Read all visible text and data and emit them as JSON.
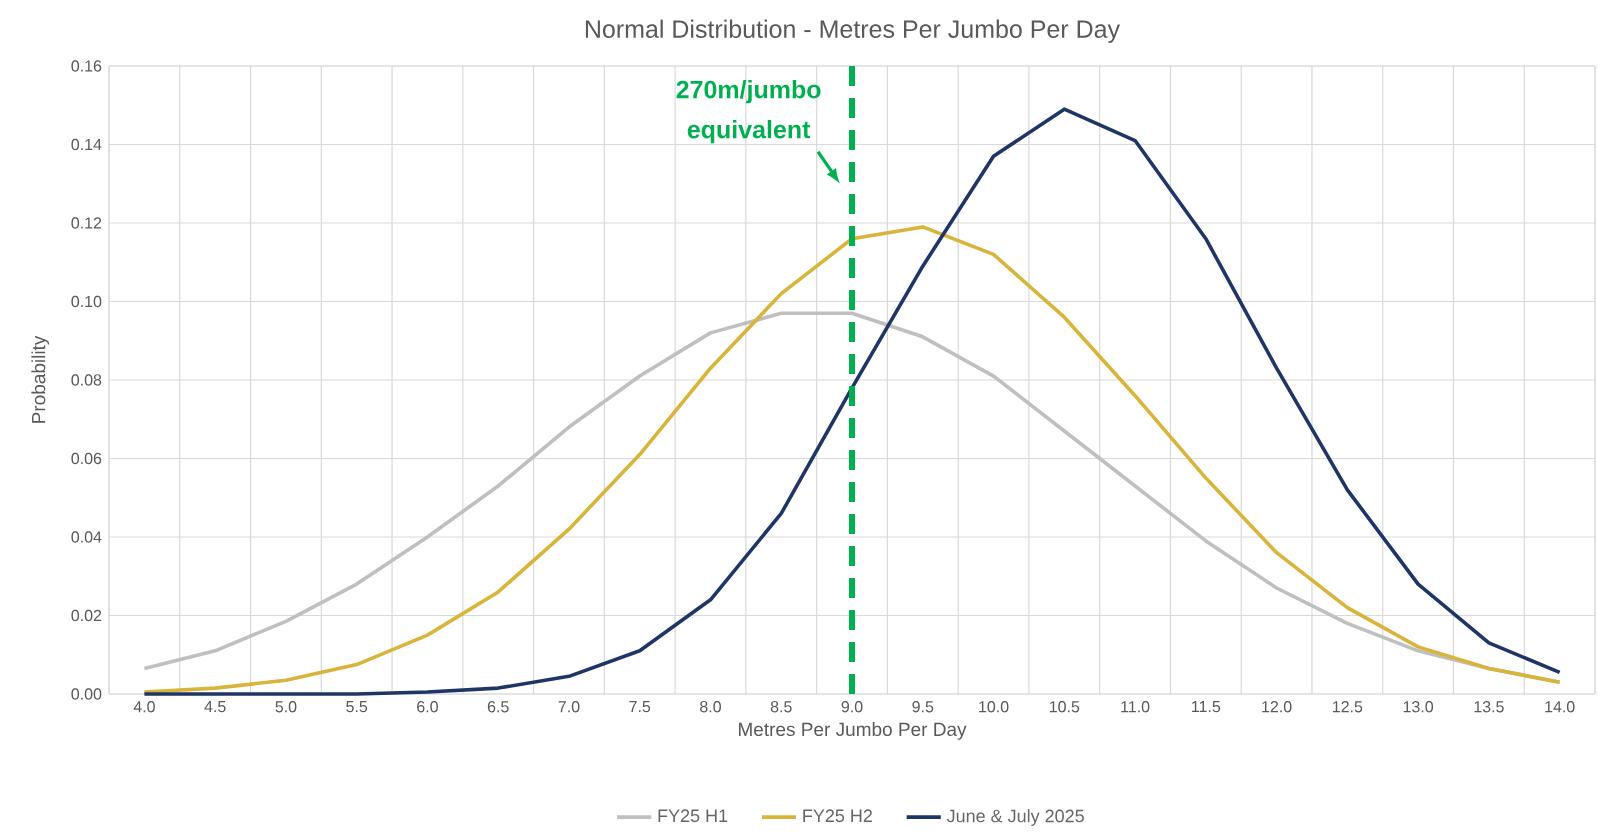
{
  "chart_data": {
    "type": "line",
    "title": "Normal Distribution - Metres Per Jumbo Per Day",
    "xlabel": "Metres Per Jumbo Per Day",
    "ylabel": "Probability",
    "x": [
      4.0,
      4.5,
      5.0,
      5.5,
      6.0,
      6.5,
      7.0,
      7.5,
      8.0,
      8.5,
      9.0,
      9.5,
      10.0,
      10.5,
      11.0,
      11.5,
      12.0,
      12.5,
      13.0,
      13.5,
      14.0
    ],
    "xlim": [
      3.75,
      14.25
    ],
    "xticks": [
      {
        "value": 4.0,
        "label": "4.0"
      },
      {
        "value": 4.5,
        "label": "4.5"
      },
      {
        "value": 5.0,
        "label": "5.0"
      },
      {
        "value": 5.5,
        "label": "5.5"
      },
      {
        "value": 6.0,
        "label": "6.0"
      },
      {
        "value": 6.5,
        "label": "6.5"
      },
      {
        "value": 7.0,
        "label": "7.0"
      },
      {
        "value": 7.5,
        "label": "7.5"
      },
      {
        "value": 8.0,
        "label": "8.0"
      },
      {
        "value": 8.5,
        "label": "8.5"
      },
      {
        "value": 9.0,
        "label": "9.0"
      },
      {
        "value": 9.5,
        "label": "9.5"
      },
      {
        "value": 10.0,
        "label": "10.0"
      },
      {
        "value": 10.5,
        "label": "10.5"
      },
      {
        "value": 11.0,
        "label": "11.0"
      },
      {
        "value": 11.5,
        "label": "11.5"
      },
      {
        "value": 12.0,
        "label": "12.0"
      },
      {
        "value": 12.5,
        "label": "12.5"
      },
      {
        "value": 13.0,
        "label": "13.0"
      },
      {
        "value": 13.5,
        "label": "13.5"
      },
      {
        "value": 14.0,
        "label": "14.0"
      }
    ],
    "ylim": [
      0,
      0.16
    ],
    "yticks": [
      {
        "value": 0,
        "label": "0.00"
      },
      {
        "value": 0.02,
        "label": "0.02"
      },
      {
        "value": 0.04,
        "label": "0.04"
      },
      {
        "value": 0.06,
        "label": "0.06"
      },
      {
        "value": 0.08,
        "label": "0.08"
      },
      {
        "value": 0.1,
        "label": "0.10"
      },
      {
        "value": 0.12,
        "label": "0.12"
      },
      {
        "value": 0.14,
        "label": "0.14"
      },
      {
        "value": 0.16,
        "label": "0.16"
      }
    ],
    "series": [
      {
        "name": "FY25 H1",
        "color": "#bfbfbf",
        "values": [
          0.0065,
          0.011,
          0.0185,
          0.028,
          0.04,
          0.053,
          0.068,
          0.081,
          0.092,
          0.097,
          0.097,
          0.091,
          0.081,
          0.067,
          0.053,
          0.039,
          0.027,
          0.018,
          0.011,
          0.0065,
          0.003
        ]
      },
      {
        "name": "FY25 H2",
        "color": "#d9b43a",
        "values": [
          0.0005,
          0.0015,
          0.0035,
          0.0075,
          0.015,
          0.026,
          0.042,
          0.061,
          0.083,
          0.102,
          0.116,
          0.119,
          0.112,
          0.096,
          0.076,
          0.055,
          0.036,
          0.022,
          0.012,
          0.0065,
          0.003
        ]
      },
      {
        "name": "June & July 2025",
        "color": "#1f3566",
        "values": [
          0,
          0,
          0,
          0,
          0.0005,
          0.0015,
          0.0045,
          0.011,
          0.024,
          0.046,
          0.078,
          0.109,
          0.137,
          0.149,
          0.141,
          0.116,
          0.083,
          0.052,
          0.028,
          0.013,
          0.0055
        ]
      }
    ],
    "ref_lines": [
      {
        "axis": "x",
        "value": 9.0,
        "color": "#00b050",
        "line_style": "dashed"
      }
    ],
    "annotations": [
      {
        "text": "270m/jumbo equivalent",
        "x": 9.0,
        "y": 0.13
      }
    ],
    "grid": true,
    "legend": "bottom",
    "marker": "none",
    "line_style": "solid"
  }
}
